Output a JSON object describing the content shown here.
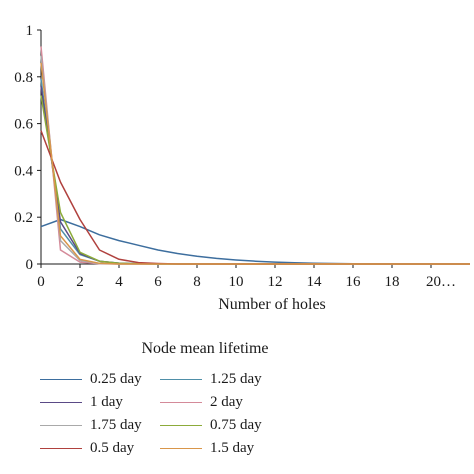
{
  "chart_data": {
    "type": "line",
    "title": "",
    "xlabel": "Number of holes",
    "ylabel": "",
    "xlim": [
      0,
      22
    ],
    "ylim": [
      0,
      1
    ],
    "x_ticks": [
      "0",
      "2",
      "4",
      "6",
      "8",
      "10",
      "12",
      "14",
      "16",
      "18",
      "20…"
    ],
    "y_ticks": [
      "0",
      "0.2",
      "0.4",
      "0.6",
      "0.8",
      "1"
    ],
    "grid": false,
    "legend_title": "Node mean lifetime",
    "legend_position": "bottom",
    "x": [
      0,
      1,
      2,
      3,
      4,
      5,
      6,
      7,
      8,
      9,
      10,
      11,
      12,
      13,
      14,
      15,
      16,
      17,
      18,
      19,
      20,
      21,
      22
    ],
    "series": [
      {
        "name": "0.25 day",
        "color": "#3d6e9e",
        "values": [
          0.16,
          0.19,
          0.16,
          0.125,
          0.1,
          0.08,
          0.06,
          0.045,
          0.033,
          0.024,
          0.017,
          0.012,
          0.008,
          0.005,
          0.003,
          0.002,
          0.001,
          0.001,
          0,
          0,
          0,
          0,
          0
        ]
      },
      {
        "name": "1.25 day",
        "color": "#4f8fa8",
        "values": [
          0.79,
          0.15,
          0.04,
          0.012,
          0.004,
          0.001,
          0,
          0,
          0,
          0,
          0,
          0,
          0,
          0,
          0,
          0,
          0,
          0,
          0,
          0,
          0,
          0,
          0
        ]
      },
      {
        "name": "1 day",
        "color": "#5a4a86",
        "values": [
          0.76,
          0.18,
          0.045,
          0.012,
          0.003,
          0.001,
          0,
          0,
          0,
          0,
          0,
          0,
          0,
          0,
          0,
          0,
          0,
          0,
          0,
          0,
          0,
          0,
          0
        ]
      },
      {
        "name": "2 day",
        "color": "#d48a99",
        "values": [
          0.93,
          0.06,
          0.008,
          0.001,
          0,
          0,
          0,
          0,
          0,
          0,
          0,
          0,
          0,
          0,
          0,
          0,
          0,
          0,
          0,
          0,
          0,
          0,
          0
        ]
      },
      {
        "name": "1.75 day",
        "color": "#a9a9a9",
        "values": [
          0.89,
          0.1,
          0.015,
          0.002,
          0,
          0,
          0,
          0,
          0,
          0,
          0,
          0,
          0,
          0,
          0,
          0,
          0,
          0,
          0,
          0,
          0,
          0,
          0
        ]
      },
      {
        "name": "0.75 day",
        "color": "#8cab3a",
        "values": [
          0.72,
          0.22,
          0.05,
          0.012,
          0.003,
          0.001,
          0,
          0,
          0,
          0,
          0,
          0,
          0,
          0,
          0,
          0,
          0,
          0,
          0,
          0,
          0,
          0,
          0
        ]
      },
      {
        "name": "0.5 day",
        "color": "#b0413e",
        "values": [
          0.57,
          0.35,
          0.19,
          0.06,
          0.02,
          0.006,
          0.002,
          0,
          0,
          0,
          0,
          0,
          0,
          0,
          0,
          0,
          0,
          0,
          0,
          0,
          0,
          0,
          0
        ]
      },
      {
        "name": "1.5 day",
        "color": "#d9964a",
        "values": [
          0.86,
          0.12,
          0.02,
          0.003,
          0,
          0,
          0,
          0,
          0,
          0,
          0,
          0,
          0,
          0,
          0,
          0,
          0,
          0,
          0,
          0,
          0,
          0,
          0
        ]
      }
    ]
  }
}
